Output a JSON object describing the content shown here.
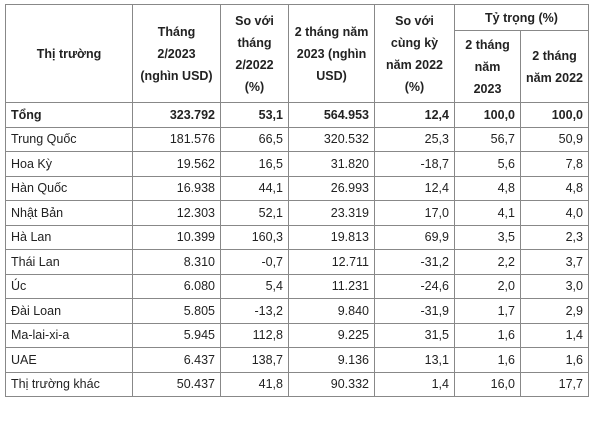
{
  "table": {
    "header": {
      "market": "Thị trường",
      "feb2023": "Tháng 2/2023 (nghìn USD)",
      "vs_feb2022": "So với tháng 2/2022 (%)",
      "two_months_2023": "2 tháng năm 2023 (nghìn USD)",
      "vs_same_period": "So với cùng kỳ năm 2022 (%)",
      "share": "Tỷ trọng (%)",
      "share_2023": "2 tháng năm 2023",
      "share_2022": "2 tháng năm 2022"
    },
    "rows": [
      [
        "Tổng",
        "323.792",
        "53,1",
        "564.953",
        "12,4",
        "100,0",
        "100,0"
      ],
      [
        "Trung Quốc",
        "181.576",
        "66,5",
        "320.532",
        "25,3",
        "56,7",
        "50,9"
      ],
      [
        "Hoa Kỳ",
        "19.562",
        "16,5",
        "31.820",
        "-18,7",
        "5,6",
        "7,8"
      ],
      [
        "Hàn Quốc",
        "16.938",
        "44,1",
        "26.993",
        "12,4",
        "4,8",
        "4,8"
      ],
      [
        "Nhật Bản",
        "12.303",
        "52,1",
        "23.319",
        "17,0",
        "4,1",
        "4,0"
      ],
      [
        "Hà Lan",
        "10.399",
        "160,3",
        "19.813",
        "69,9",
        "3,5",
        "2,3"
      ],
      [
        "Thái Lan",
        "8.310",
        "-0,7",
        "12.711",
        "-31,2",
        "2,2",
        "3,7"
      ],
      [
        "Úc",
        "6.080",
        "5,4",
        "11.231",
        "-24,6",
        "2,0",
        "3,0"
      ],
      [
        "Đài Loan",
        "5.805",
        "-13,2",
        "9.840",
        "-31,9",
        "1,7",
        "2,9"
      ],
      [
        "Ma-lai-xi-a",
        "5.945",
        "112,8",
        "9.225",
        "31,5",
        "1,6",
        "1,4"
      ],
      [
        "UAE",
        "6.437",
        "138,7",
        "9.136",
        "13,1",
        "1,6",
        "1,6"
      ],
      [
        "Thị trường khác",
        "50.437",
        "41,8",
        "90.332",
        "1,4",
        "16,0",
        "17,7"
      ]
    ]
  }
}
